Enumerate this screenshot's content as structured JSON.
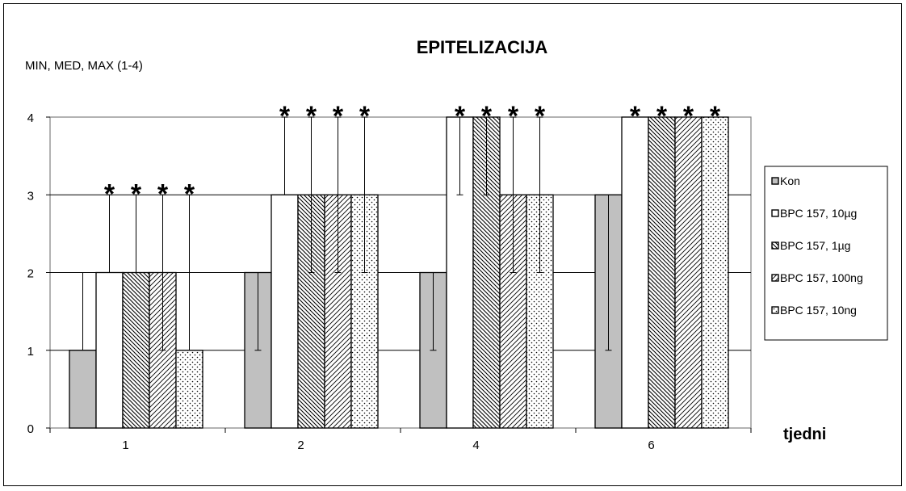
{
  "chart_data": {
    "type": "bar",
    "title": "EPITELIZACIJA",
    "ylabel": "MIN, MED, MAX (1-4)",
    "xlabel": "tjedni",
    "ylim": [
      0,
      4
    ],
    "yticks": [
      "0",
      "1",
      "2",
      "3",
      "4"
    ],
    "grid": true,
    "legend_position": "right",
    "categories": [
      "1",
      "2",
      "4",
      "6"
    ],
    "significance_marker": "*",
    "significant_series": [
      1,
      2,
      3,
      4
    ],
    "series": [
      {
        "name": "Kon",
        "pattern": "solid-gray",
        "med": [
          1,
          2,
          2,
          3
        ],
        "min": [
          1,
          1,
          1,
          1
        ],
        "max": [
          2,
          2,
          2,
          3
        ]
      },
      {
        "name": "BPC 157, 10µg",
        "pattern": "white",
        "med": [
          2,
          3,
          4,
          4
        ],
        "min": [
          2,
          3,
          3,
          4
        ],
        "max": [
          3,
          4,
          4,
          4
        ]
      },
      {
        "name": "BPC 157, 1µg",
        "pattern": "diagonal-down",
        "med": [
          2,
          3,
          4,
          4
        ],
        "min": [
          2,
          2,
          3,
          4
        ],
        "max": [
          3,
          4,
          4,
          4
        ]
      },
      {
        "name": "BPC 157, 100ng",
        "pattern": "diagonal-up",
        "med": [
          2,
          3,
          3,
          4
        ],
        "min": [
          1,
          2,
          2,
          4
        ],
        "max": [
          3,
          4,
          4,
          4
        ]
      },
      {
        "name": "BPC 157, 10ng",
        "pattern": "dots",
        "med": [
          1,
          3,
          3,
          4
        ],
        "min": [
          1,
          2,
          2,
          4
        ],
        "max": [
          3,
          4,
          4,
          4
        ]
      }
    ]
  }
}
